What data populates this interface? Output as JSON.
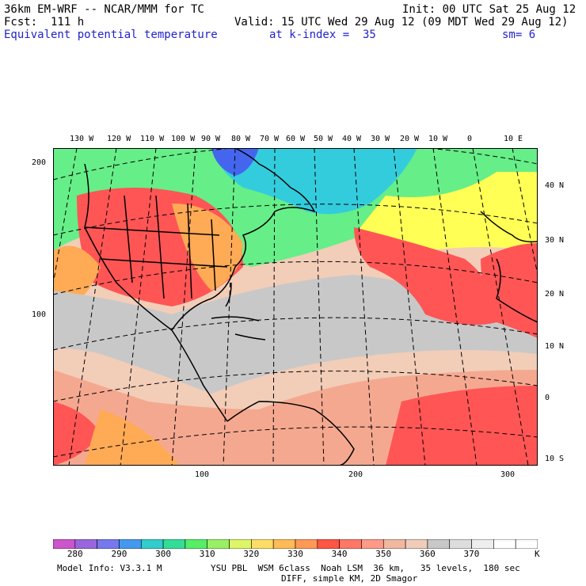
{
  "header": {
    "model_line": "36km EM-WRF -- NCAR/MMM for TC",
    "init_line": "Init: 00 UTC Sat 25 Aug 12",
    "fcst_line": "Fcst:  111 h",
    "valid_line": "Valid: 15 UTC Wed 29 Aug 12 (09 MDT Wed 29 Aug 12)",
    "field_name": "Equivalent potential temperature",
    "level_label": "at k-index =  35",
    "smooth_label": "sm= 6"
  },
  "map": {
    "top_lon_labels": [
      "130 W",
      "120 W",
      "110 W",
      "100 W",
      "90 W",
      "80 W",
      "70 W",
      "60 W",
      "50 W",
      "40 W",
      "30 W",
      "20 W",
      "10 W",
      "0",
      "10 E"
    ],
    "right_lat_labels": [
      "40 N",
      "30 N",
      "20 N",
      "10 N",
      "0",
      "10 S"
    ],
    "left_grid_labels": [
      "200",
      "100"
    ],
    "bottom_grid_labels": [
      "100",
      "200",
      "300"
    ],
    "colors": {
      "cold": "#4466ee",
      "cyan": "#33ccdd",
      "green": "#66ee88",
      "yellow": "#ffff55",
      "orange": "#ffaa55",
      "red": "#ff5555",
      "salmon": "#f5a890",
      "peach": "#f2cdb8",
      "gray": "#c8c8c8",
      "border": "#000000",
      "grid": "#000000"
    }
  },
  "colorbar": {
    "colors": [
      "#cc55cc",
      "#9966dd",
      "#7777ee",
      "#4499ee",
      "#33cccc",
      "#33dd99",
      "#55ee66",
      "#99f066",
      "#ddf566",
      "#ffdd66",
      "#ffbb55",
      "#ff9955",
      "#ff5544",
      "#ff7766",
      "#ff9988",
      "#f0b8a0",
      "#f2ccbb",
      "#c8c8c8",
      "#dddddd",
      "#eeeeee",
      "#ffffff",
      "#ffffff"
    ],
    "labels": [
      "280",
      "290",
      "300",
      "310",
      "320",
      "330",
      "340",
      "350",
      "360",
      "370"
    ],
    "unit": "K"
  },
  "footer": {
    "line1_left": "Model Info: V3.3.1 M",
    "line1_right": "YSU PBL  WSM 6class  Noah LSM  36 km,   35 levels,  180 sec",
    "line2": "DIFF, simple KM, 2D Smagor"
  }
}
